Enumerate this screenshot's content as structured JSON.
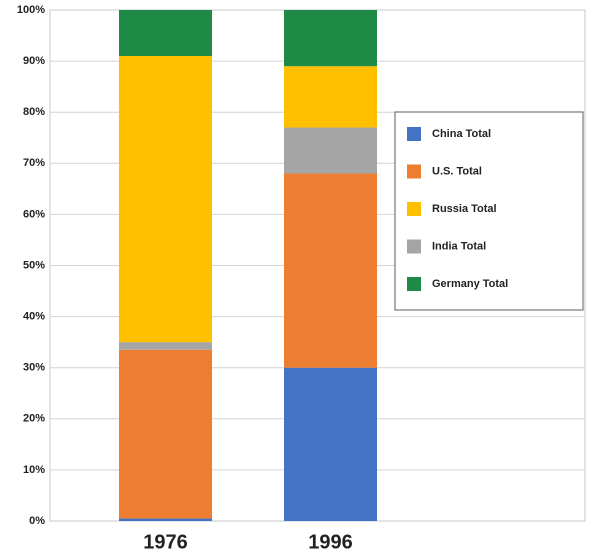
{
  "chart_data": {
    "type": "stacked_bar",
    "categories": [
      "1976",
      "1996"
    ],
    "series": [
      {
        "name": "China Total",
        "color": "#4472c4",
        "values": [
          0.5,
          30
        ]
      },
      {
        "name": "U.S. Total",
        "color": "#ed7d31",
        "values": [
          33,
          38
        ]
      },
      {
        "name": "Russia Total",
        "color": "#ffc000",
        "values": [
          56,
          12
        ]
      },
      {
        "name": "India Total",
        "color": "#a5a5a5",
        "values": [
          1.5,
          9
        ]
      },
      {
        "name": "Germany Total",
        "color": "#1e8a46",
        "values": [
          9,
          11
        ]
      }
    ],
    "stack_order": [
      0,
      1,
      3,
      2,
      4
    ],
    "ylim": [
      0,
      100
    ],
    "yticks": [
      {
        "value": 0,
        "label": "0%"
      },
      {
        "value": 10,
        "label": "10%"
      },
      {
        "value": 20,
        "label": "20%"
      },
      {
        "value": 30,
        "label": "30%"
      },
      {
        "value": 40,
        "label": "40%"
      },
      {
        "value": 50,
        "label": "50%"
      },
      {
        "value": 60,
        "label": "60%"
      },
      {
        "value": 70,
        "label": "70%"
      },
      {
        "value": 80,
        "label": "80%"
      },
      {
        "value": 90,
        "label": "90%"
      },
      {
        "value": 100,
        "label": "100%"
      }
    ],
    "grid": true,
    "legend": "right"
  }
}
